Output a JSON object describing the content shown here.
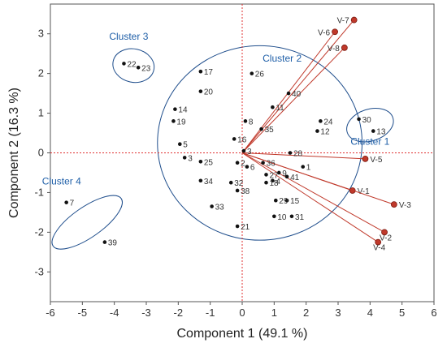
{
  "chart_data": {
    "type": "scatter",
    "title": "",
    "xlabel": "Component 1  (49.1 %)",
    "ylabel": "Component 2  (16.3 %)",
    "xlim": [
      -6,
      6
    ],
    "ylim": [
      -3.75,
      3.75
    ],
    "xticks": [
      -6,
      -5,
      -4,
      -3,
      -2,
      -1,
      0,
      1,
      2,
      3,
      4,
      5,
      6
    ],
    "yticks": [
      -3,
      -2,
      -1,
      0,
      1,
      2,
      3
    ],
    "grid": false,
    "reference_lines": {
      "x": 0,
      "y": 0,
      "color": "#e03030"
    },
    "point_color": "#111111",
    "vector_color": "#c0392b",
    "cluster_color": "#1f4e8c",
    "points": [
      {
        "label": "1",
        "x": 1.9,
        "y": -0.35
      },
      {
        "label": "2",
        "x": -0.15,
        "y": -0.25
      },
      {
        "label": "3",
        "x": 0.05,
        "y": 0.05
      },
      {
        "label": "3",
        "x": -1.8,
        "y": -0.12
      },
      {
        "label": "4",
        "x": 0.95,
        "y": -0.7
      },
      {
        "label": "5",
        "x": -1.95,
        "y": 0.22
      },
      {
        "label": "6",
        "x": 0.15,
        "y": -0.35
      },
      {
        "label": "7",
        "x": -5.5,
        "y": -1.25
      },
      {
        "label": "8",
        "x": 0.1,
        "y": 0.8
      },
      {
        "label": "9",
        "x": 1.15,
        "y": -0.5
      },
      {
        "label": "10",
        "x": 1.0,
        "y": -1.6
      },
      {
        "label": "11",
        "x": 0.95,
        "y": 1.15
      },
      {
        "label": "12",
        "x": 2.35,
        "y": 0.55
      },
      {
        "label": "13",
        "x": 4.1,
        "y": 0.55
      },
      {
        "label": "14",
        "x": -2.1,
        "y": 1.1
      },
      {
        "label": "15",
        "x": 1.4,
        "y": -1.2
      },
      {
        "label": "16",
        "x": -0.25,
        "y": 0.35
      },
      {
        "label": "17",
        "x": -1.3,
        "y": 2.05
      },
      {
        "label": "18",
        "x": 0.75,
        "y": -0.75
      },
      {
        "label": "19",
        "x": -2.15,
        "y": 0.8
      },
      {
        "label": "20",
        "x": -1.3,
        "y": 1.55
      },
      {
        "label": "21",
        "x": -0.15,
        "y": -1.85
      },
      {
        "label": "22",
        "x": -3.7,
        "y": 2.25
      },
      {
        "label": "23",
        "x": -3.25,
        "y": 2.15
      },
      {
        "label": "24",
        "x": 2.45,
        "y": 0.8
      },
      {
        "label": "25",
        "x": -1.3,
        "y": -0.22
      },
      {
        "label": "26",
        "x": 0.3,
        "y": 2.0
      },
      {
        "label": "27",
        "x": 0.75,
        "y": -0.55
      },
      {
        "label": "28",
        "x": 1.5,
        "y": 0.0
      },
      {
        "label": "29",
        "x": 1.05,
        "y": -1.2
      },
      {
        "label": "30",
        "x": 3.65,
        "y": 0.85
      },
      {
        "label": "31",
        "x": 1.55,
        "y": -1.6
      },
      {
        "label": "32",
        "x": -0.35,
        "y": -0.75
      },
      {
        "label": "33",
        "x": -0.95,
        "y": -1.35
      },
      {
        "label": "34",
        "x": -1.3,
        "y": -0.7
      },
      {
        "label": "35",
        "x": 0.6,
        "y": 0.6
      },
      {
        "label": "36",
        "x": 0.65,
        "y": -0.25
      },
      {
        "label": "38",
        "x": -0.15,
        "y": -0.95
      },
      {
        "label": "39",
        "x": -4.3,
        "y": -2.25
      },
      {
        "label": "40",
        "x": 1.45,
        "y": 1.5
      },
      {
        "label": "41",
        "x": 1.4,
        "y": -0.6
      }
    ],
    "vectors": [
      {
        "label": "V-1",
        "x": 3.45,
        "y": -0.95
      },
      {
        "label": "V-2",
        "x": 4.45,
        "y": -2.0
      },
      {
        "label": "V-3",
        "x": 4.75,
        "y": -1.3
      },
      {
        "label": "V-4",
        "x": 4.25,
        "y": -2.25
      },
      {
        "label": "V-5",
        "x": 3.85,
        "y": -0.15
      },
      {
        "label": "V-6",
        "x": 2.9,
        "y": 3.05
      },
      {
        "label": "V-7",
        "x": 3.5,
        "y": 3.35
      },
      {
        "label": "V-8",
        "x": 3.2,
        "y": 2.65
      }
    ],
    "clusters": [
      {
        "label": "Cluster 1",
        "cx": 4.0,
        "cy": 0.7,
        "rx": 0.75,
        "ry": 0.4,
        "angle": 18
      },
      {
        "label": "Cluster 2",
        "cx": 0.55,
        "cy": 0.25,
        "rx": 3.2,
        "ry": 2.45,
        "angle": 0
      },
      {
        "label": "Cluster 3",
        "cx": -3.4,
        "cy": 2.2,
        "rx": 0.65,
        "ry": 0.42,
        "angle": -12
      },
      {
        "label": "Cluster 4",
        "cx": -4.85,
        "cy": -1.75,
        "rx": 1.3,
        "ry": 0.38,
        "angle": 35
      }
    ]
  }
}
